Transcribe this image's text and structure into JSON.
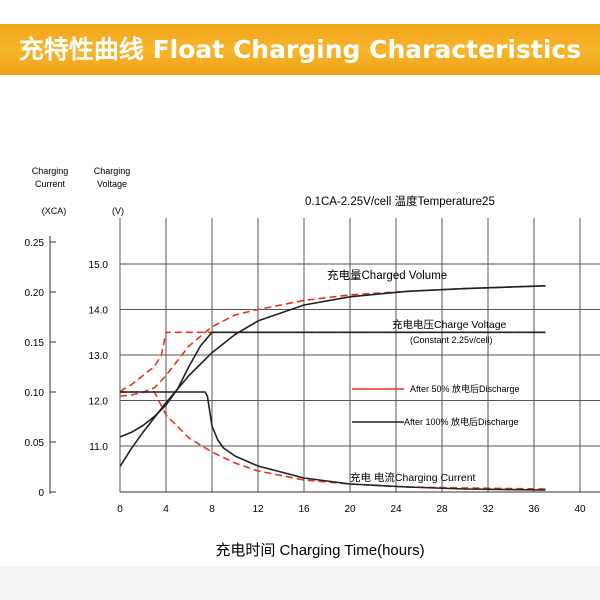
{
  "banner": {
    "title": "充特性曲线 Float Charging Characteristics"
  },
  "chart_data": {
    "type": "line",
    "condition_label": "0.1CA-2.25V/cell  温度Temperature25",
    "left_axis": {
      "title_line1": "Charging",
      "title_line2": "Current",
      "unit": "(XCA)",
      "ticks": [
        0,
        0.05,
        0.1,
        0.15,
        0.2,
        0.25
      ],
      "tick_labels": [
        "0",
        "0.05",
        "0.10",
        "0.15",
        "0.20",
        "0.25"
      ]
    },
    "voltage_axis": {
      "title_line1": "Charging",
      "title_line2": "Voltage",
      "unit": "(V)",
      "ticks": [
        11.0,
        12.0,
        13.0,
        14.0,
        15.0
      ],
      "tick_labels": [
        "11.0",
        "12.0",
        "13.0",
        "14.0",
        "15.0"
      ]
    },
    "x_axis": {
      "label": "充电时间 Charging Time(hours)",
      "ticks": [
        0,
        4,
        8,
        12,
        16,
        20,
        24,
        28,
        32,
        36,
        40
      ],
      "tick_labels": [
        "0",
        "4",
        "8",
        "12",
        "16",
        "20",
        "24",
        "28",
        "32",
        "36",
        "40"
      ]
    },
    "curve_labels": {
      "charged_volume": "充电量Charged Volume",
      "charge_voltage": "充电电压Charge Voltage",
      "constant_voltage": "(Constant 2.25v/cell)",
      "charging_current": "充电 电流Charging Current"
    },
    "legend": [
      {
        "label": "After 50% 放电后Discharge",
        "color": "#e8341c",
        "style": "dashed"
      },
      {
        "label": "After 100% 放电后Discharge",
        "color": "#222222",
        "style": "solid"
      }
    ],
    "series": [
      {
        "name": "After 50% 放电后Discharge",
        "curve": "charge_voltage",
        "axis": "voltage",
        "color": "#e8341c",
        "style": "dashed",
        "x": [
          0,
          1,
          2,
          3,
          3.6,
          4,
          5,
          8,
          12,
          20,
          30,
          37
        ],
        "y": [
          12.2,
          12.35,
          12.55,
          12.75,
          13.0,
          13.5,
          13.5,
          13.5,
          13.5,
          13.5,
          13.5,
          13.5
        ]
      },
      {
        "name": "After 100% 放电后Discharge",
        "curve": "charge_voltage",
        "axis": "voltage",
        "color": "#222222",
        "style": "solid",
        "x": [
          0,
          1,
          2,
          3,
          4,
          5,
          6,
          7,
          8,
          12,
          20,
          30,
          37
        ],
        "y": [
          11.2,
          11.3,
          11.45,
          11.65,
          11.9,
          12.25,
          12.75,
          13.2,
          13.5,
          13.5,
          13.5,
          13.5,
          13.5
        ]
      },
      {
        "name": "After 50% 放电后Discharge",
        "curve": "charged_volume",
        "axis": "voltage",
        "color": "#e8341c",
        "style": "dashed",
        "x": [
          0,
          1,
          2,
          3,
          4,
          6,
          8,
          10,
          12,
          16,
          20,
          25,
          30,
          37
        ],
        "y": [
          12.1,
          12.12,
          12.18,
          12.28,
          12.55,
          13.2,
          13.62,
          13.88,
          14.0,
          14.2,
          14.32,
          14.4,
          14.46,
          14.52
        ]
      },
      {
        "name": "After 100% 放电后Discharge",
        "curve": "charged_volume",
        "axis": "voltage",
        "color": "#222222",
        "style": "solid",
        "x": [
          0,
          1,
          2,
          4,
          6,
          8,
          10,
          12,
          16,
          20,
          25,
          30,
          37
        ],
        "y": [
          10.55,
          10.95,
          11.3,
          11.95,
          12.55,
          13.05,
          13.45,
          13.75,
          14.1,
          14.28,
          14.4,
          14.46,
          14.52
        ]
      },
      {
        "name": "After 50% 放电后Discharge",
        "curve": "charging_current",
        "axis": "current",
        "color": "#e8341c",
        "style": "dashed",
        "x": [
          0,
          1,
          2,
          3,
          4,
          6,
          8,
          10,
          12,
          16,
          20,
          25,
          30,
          37
        ],
        "y": [
          0.1,
          0.1,
          0.1,
          0.1,
          0.077,
          0.054,
          0.04,
          0.029,
          0.021,
          0.012,
          0.008,
          0.005,
          0.004,
          0.003
        ]
      },
      {
        "name": "After 100% 放电后Discharge",
        "curve": "charging_current",
        "axis": "current",
        "color": "#222222",
        "style": "solid",
        "x": [
          0,
          7.4,
          7.6,
          8,
          8.5,
          9,
          10,
          12,
          16,
          20,
          25,
          30,
          37
        ],
        "y": [
          0.1,
          0.1,
          0.096,
          0.066,
          0.052,
          0.044,
          0.036,
          0.026,
          0.014,
          0.008,
          0.005,
          0.003,
          0.002
        ]
      }
    ]
  }
}
